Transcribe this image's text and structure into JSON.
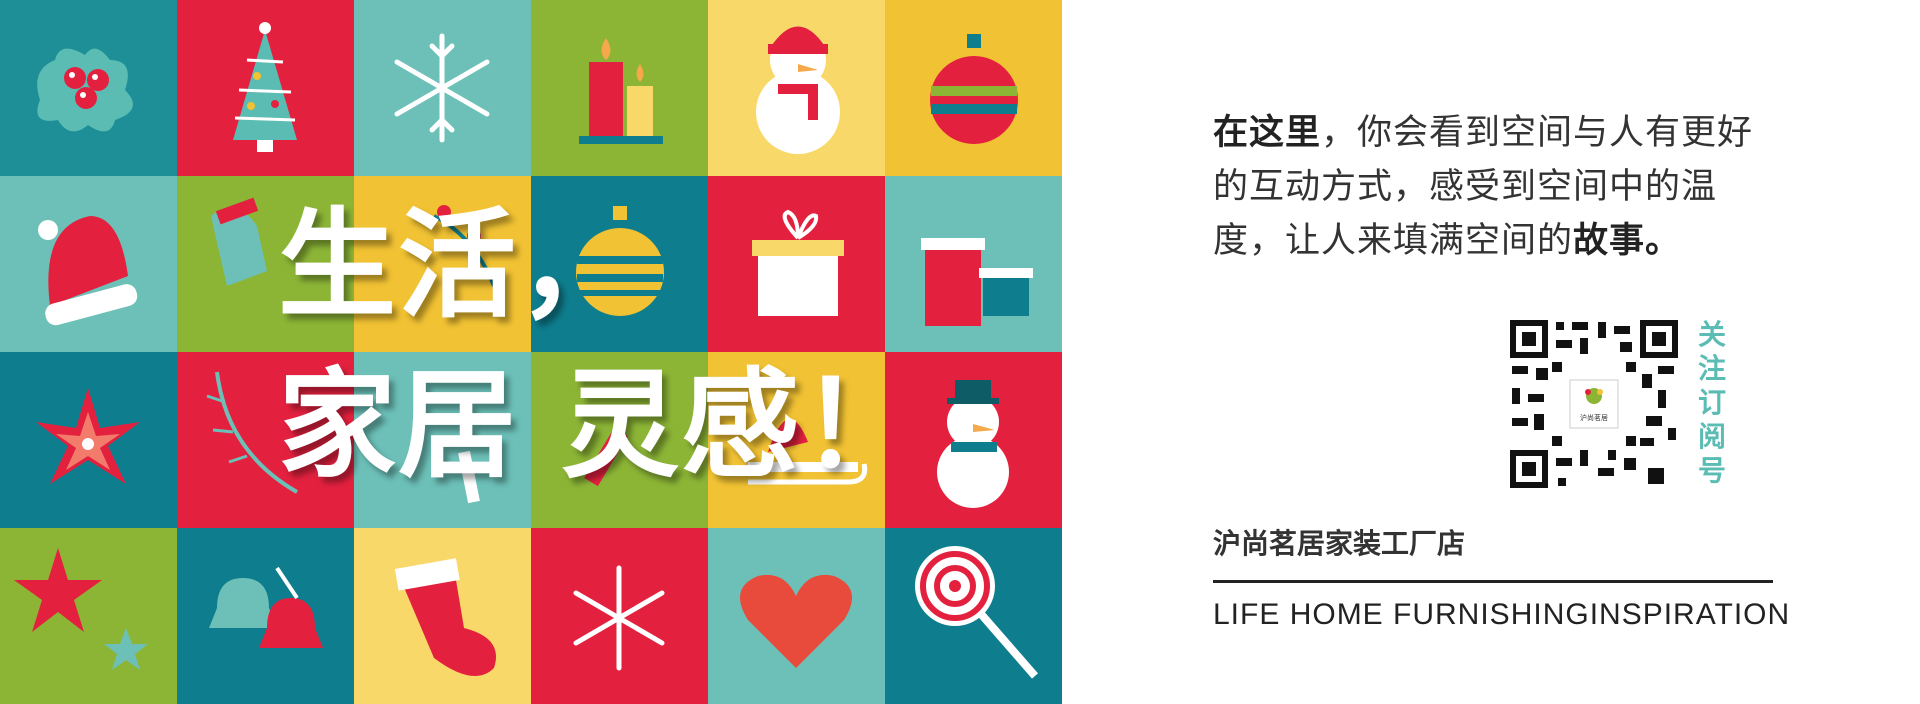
{
  "headline": {
    "line1": "生活，",
    "line2": "家居 灵感！"
  },
  "intro": {
    "bold_start": "在这里",
    "middle": "，你会看到空间与人有更好的互动方式，感受到空间中的温度，让人来填满空间的",
    "bold_end": "故事。"
  },
  "qr": {
    "label_chars": [
      "关",
      "注",
      "订",
      "阅",
      "号"
    ],
    "logo_text": "沪尚茗居"
  },
  "store_name": "沪尚茗居家装工厂店",
  "tagline": "LIFE HOME FURNISHINGINSPIRATION",
  "colors": {
    "teal_dark": "#0e7d8d",
    "teal_light": "#6cc0b8",
    "red": "#e3213f",
    "green": "#8cb536",
    "yellow": "#f1c233",
    "yellow_light": "#f9d86a",
    "qr_label": "#5bbcb4"
  },
  "tiles": [
    [
      "holly-icon",
      "christmas-tree-icon",
      "snowflake-icon",
      "candles-icon",
      "snowman-icon",
      "ornament-icon"
    ],
    [
      "santa-hat-icon",
      "mitten-icon",
      "berries-icon",
      "ornament-icon",
      "gift-box-icon",
      "gift-boxes-icon"
    ],
    [
      "poinsettia-icon",
      "branch-icon",
      "candy-cane-icon",
      "candy-cane-icon",
      "sled-icon",
      "snowman-icon"
    ],
    [
      "stars-icon",
      "bells-icon",
      "stocking-icon",
      "snowflake-icon",
      "heart-icon",
      "lollipop-icon"
    ]
  ]
}
